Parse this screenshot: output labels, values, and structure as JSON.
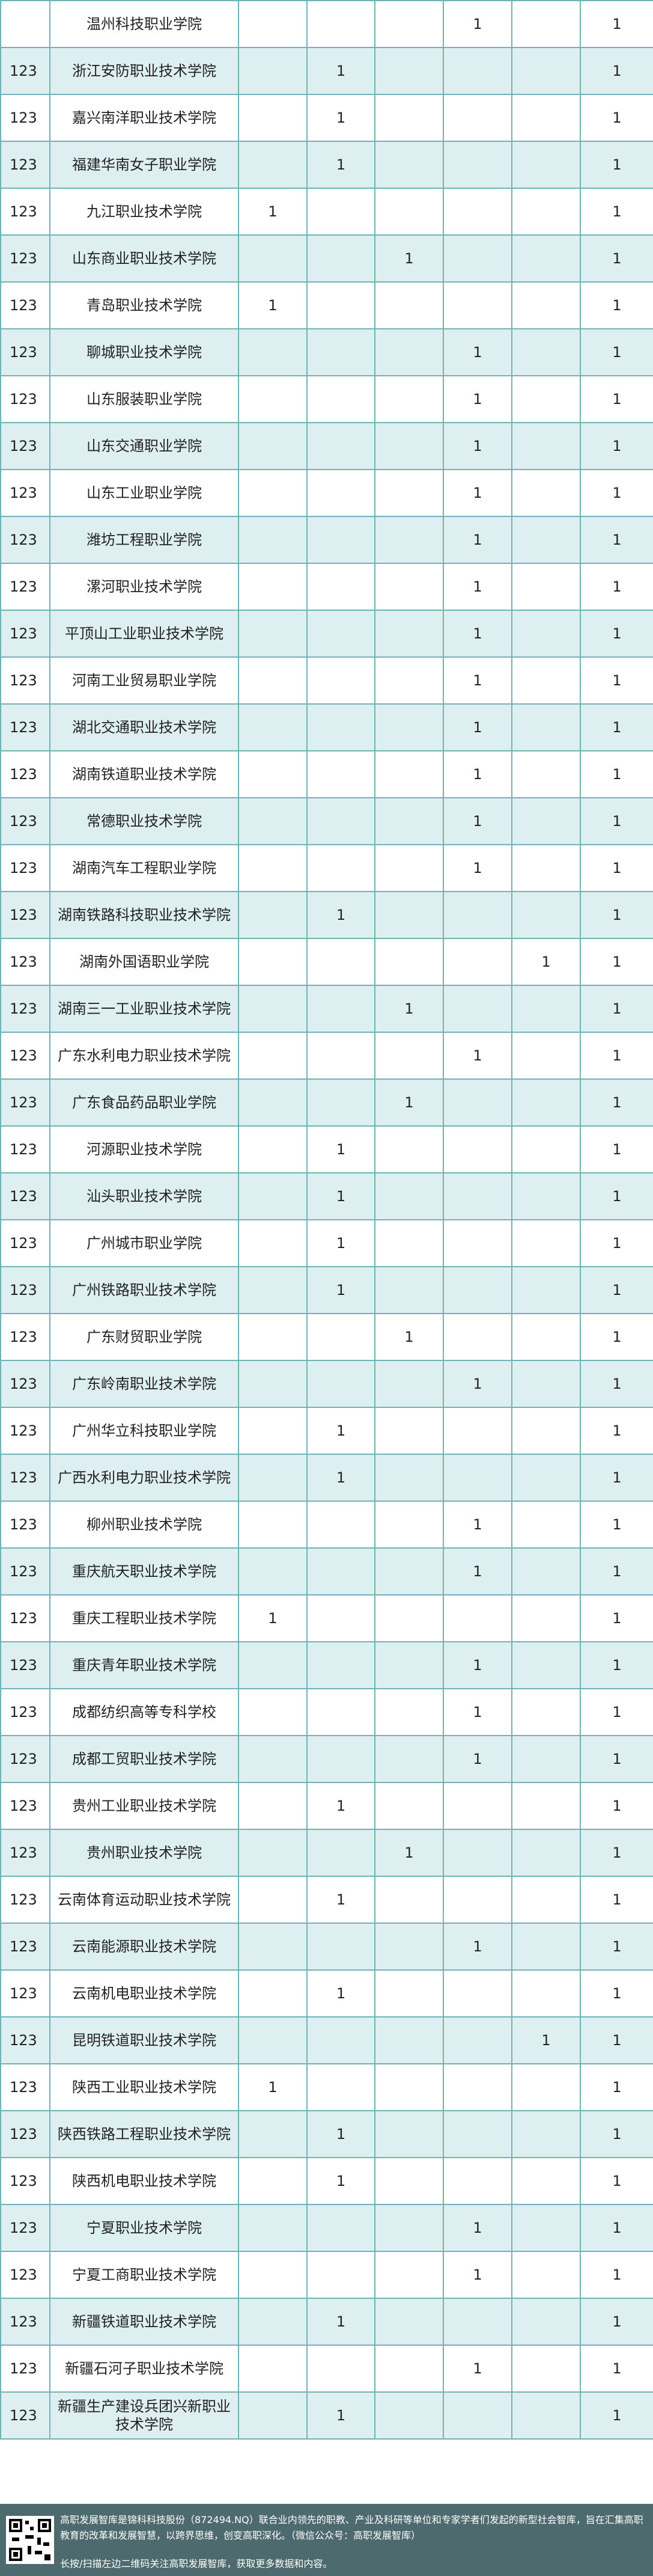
{
  "table": {
    "rows": [
      [
        null,
        "温州科技职业学院",
        null,
        null,
        null,
        1,
        null,
        1
      ],
      [
        123,
        "浙江安防职业技术学院",
        null,
        1,
        null,
        null,
        null,
        1
      ],
      [
        123,
        "嘉兴南洋职业技术学院",
        null,
        1,
        null,
        null,
        null,
        1
      ],
      [
        123,
        "福建华南女子职业学院",
        null,
        1,
        null,
        null,
        null,
        1
      ],
      [
        123,
        "九江职业技术学院",
        1,
        null,
        null,
        null,
        null,
        1
      ],
      [
        123,
        "山东商业职业技术学院",
        null,
        null,
        1,
        null,
        null,
        1
      ],
      [
        123,
        "青岛职业技术学院",
        1,
        null,
        null,
        null,
        null,
        1
      ],
      [
        123,
        "聊城职业技术学院",
        null,
        null,
        null,
        1,
        null,
        1
      ],
      [
        123,
        "山东服装职业学院",
        null,
        null,
        null,
        1,
        null,
        1
      ],
      [
        123,
        "山东交通职业学院",
        null,
        null,
        null,
        1,
        null,
        1
      ],
      [
        123,
        "山东工业职业学院",
        null,
        null,
        null,
        1,
        null,
        1
      ],
      [
        123,
        "潍坊工程职业学院",
        null,
        null,
        null,
        1,
        null,
        1
      ],
      [
        123,
        "漯河职业技术学院",
        null,
        null,
        null,
        1,
        null,
        1
      ],
      [
        123,
        "平顶山工业职业技术学院",
        null,
        null,
        null,
        1,
        null,
        1
      ],
      [
        123,
        "河南工业贸易职业学院",
        null,
        null,
        null,
        1,
        null,
        1
      ],
      [
        123,
        "湖北交通职业技术学院",
        null,
        null,
        null,
        1,
        null,
        1
      ],
      [
        123,
        "湖南铁道职业技术学院",
        null,
        null,
        null,
        1,
        null,
        1
      ],
      [
        123,
        "常德职业技术学院",
        null,
        null,
        null,
        1,
        null,
        1
      ],
      [
        123,
        "湖南汽车工程职业学院",
        null,
        null,
        null,
        1,
        null,
        1
      ],
      [
        123,
        "湖南铁路科技职业技术学院",
        null,
        1,
        null,
        null,
        null,
        1
      ],
      [
        123,
        "湖南外国语职业学院",
        null,
        null,
        null,
        null,
        1,
        1
      ],
      [
        123,
        "湖南三一工业职业技术学院",
        null,
        null,
        1,
        null,
        null,
        1
      ],
      [
        123,
        "广东水利电力职业技术学院",
        null,
        null,
        null,
        1,
        null,
        1
      ],
      [
        123,
        "广东食品药品职业学院",
        null,
        null,
        1,
        null,
        null,
        1
      ],
      [
        123,
        "河源职业技术学院",
        null,
        1,
        null,
        null,
        null,
        1
      ],
      [
        123,
        "汕头职业技术学院",
        null,
        1,
        null,
        null,
        null,
        1
      ],
      [
        123,
        "广州城市职业学院",
        null,
        1,
        null,
        null,
        null,
        1
      ],
      [
        123,
        "广州铁路职业技术学院",
        null,
        1,
        null,
        null,
        null,
        1
      ],
      [
        123,
        "广东财贸职业学院",
        null,
        null,
        1,
        null,
        null,
        1
      ],
      [
        123,
        "广东岭南职业技术学院",
        null,
        null,
        null,
        1,
        null,
        1
      ],
      [
        123,
        "广州华立科技职业学院",
        null,
        1,
        null,
        null,
        null,
        1
      ],
      [
        123,
        "广西水利电力职业技术学院",
        null,
        1,
        null,
        null,
        null,
        1
      ],
      [
        123,
        "柳州职业技术学院",
        null,
        null,
        null,
        1,
        null,
        1
      ],
      [
        123,
        "重庆航天职业技术学院",
        null,
        null,
        null,
        1,
        null,
        1
      ],
      [
        123,
        "重庆工程职业技术学院",
        1,
        null,
        null,
        null,
        null,
        1
      ],
      [
        123,
        "重庆青年职业技术学院",
        null,
        null,
        null,
        1,
        null,
        1
      ],
      [
        123,
        "成都纺织高等专科学校",
        null,
        null,
        null,
        1,
        null,
        1
      ],
      [
        123,
        "成都工贸职业技术学院",
        null,
        null,
        null,
        1,
        null,
        1
      ],
      [
        123,
        "贵州工业职业技术学院",
        null,
        1,
        null,
        null,
        null,
        1
      ],
      [
        123,
        "贵州职业技术学院",
        null,
        null,
        1,
        null,
        null,
        1
      ],
      [
        123,
        "云南体育运动职业技术学院",
        null,
        1,
        null,
        null,
        null,
        1
      ],
      [
        123,
        "云南能源职业技术学院",
        null,
        null,
        null,
        1,
        null,
        1
      ],
      [
        123,
        "云南机电职业技术学院",
        null,
        1,
        null,
        null,
        null,
        1
      ],
      [
        123,
        "昆明铁道职业技术学院",
        null,
        null,
        null,
        null,
        1,
        1
      ],
      [
        123,
        "陕西工业职业技术学院",
        1,
        null,
        null,
        null,
        null,
        1
      ],
      [
        123,
        "陕西铁路工程职业技术学院",
        null,
        1,
        null,
        null,
        null,
        1
      ],
      [
        123,
        "陕西机电职业技术学院",
        null,
        1,
        null,
        null,
        null,
        1
      ],
      [
        123,
        "宁夏职业技术学院",
        null,
        null,
        null,
        1,
        null,
        1
      ],
      [
        123,
        "宁夏工商职业技术学院",
        null,
        null,
        null,
        1,
        null,
        1
      ],
      [
        123,
        "新疆铁道职业技术学院",
        null,
        1,
        null,
        null,
        null,
        1
      ],
      [
        123,
        "新疆石河子职业技术学院",
        null,
        null,
        null,
        1,
        null,
        1
      ],
      [
        123,
        "新疆生产建设兵团兴新职业技术学院",
        null,
        1,
        null,
        null,
        null,
        1
      ]
    ]
  },
  "footer": {
    "line1": "高职发展智库是锦科科技股份（872494.NQ）联合业内领先的职教、产业及科研等单位和专家学者们发起的新型社会智库，旨在汇集高职教育的改革和发展智慧，以跨界思维，创变高职深化。（微信公众号：高职发展智库）",
    "line2": "长按/扫描左边二维码关注高职发展智库，获取更多数据和内容。"
  }
}
